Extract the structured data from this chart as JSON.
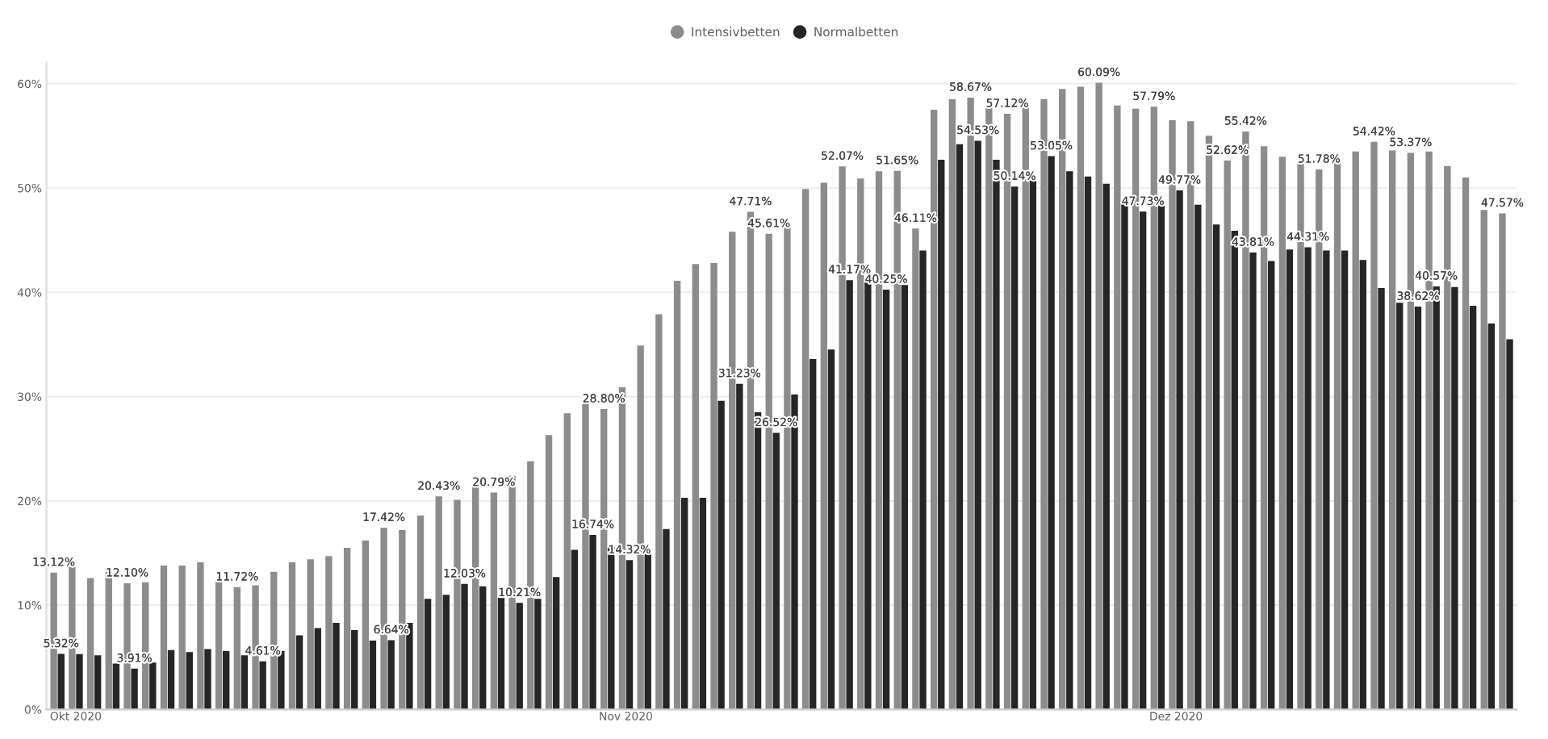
{
  "chart_data": {
    "type": "bar",
    "categories": [
      null,
      "Okt 2020",
      null,
      null,
      null,
      null,
      null,
      null,
      null,
      null,
      null,
      null,
      null,
      null,
      null,
      null,
      null,
      null,
      null,
      null,
      null,
      null,
      null,
      null,
      null,
      null,
      null,
      null,
      null,
      null,
      null,
      "Nov 2020",
      null,
      null,
      null,
      null,
      null,
      null,
      null,
      null,
      null,
      null,
      null,
      null,
      null,
      null,
      null,
      null,
      null,
      null,
      null,
      null,
      null,
      null,
      null,
      null,
      null,
      null,
      null,
      null,
      null,
      "Dez 2020",
      null,
      null,
      null,
      null,
      null,
      null,
      null,
      null,
      null,
      null,
      null,
      null,
      null,
      null,
      null,
      null,
      null,
      null
    ],
    "series": [
      {
        "name": "Intensivbetten",
        "color": "#8c8c8c",
        "values": [
          13.12,
          13.7,
          12.6,
          13.2,
          12.1,
          12.2,
          13.8,
          13.8,
          14.1,
          12.3,
          11.72,
          11.9,
          13.2,
          14.1,
          14.4,
          14.7,
          15.5,
          16.2,
          17.42,
          17.2,
          18.6,
          20.43,
          20.1,
          21.5,
          20.79,
          22.4,
          23.8,
          26.3,
          28.4,
          29.6,
          28.8,
          30.9,
          34.9,
          37.9,
          41.1,
          42.7,
          42.8,
          45.8,
          47.71,
          45.61,
          46.2,
          49.9,
          50.5,
          52.07,
          50.9,
          51.6,
          51.65,
          46.11,
          57.5,
          58.5,
          58.67,
          58.2,
          57.12,
          57.7,
          58.5,
          59.5,
          59.7,
          60.09,
          57.9,
          57.6,
          57.79,
          56.5,
          56.4,
          55.0,
          52.62,
          55.42,
          54.0,
          53.0,
          52.3,
          51.78,
          52.5,
          53.5,
          54.42,
          53.6,
          53.37,
          53.5,
          52.1,
          51.0,
          47.9,
          47.57
        ],
        "value_labels": [
          "13.12%",
          null,
          null,
          null,
          "12.10%",
          null,
          null,
          null,
          null,
          null,
          "11.72%",
          null,
          null,
          null,
          null,
          null,
          null,
          null,
          "17.42%",
          null,
          null,
          "20.43%",
          null,
          null,
          "20.79%",
          null,
          null,
          null,
          null,
          null,
          "28.80%",
          null,
          null,
          null,
          null,
          null,
          null,
          null,
          "47.71%",
          "45.61%",
          null,
          null,
          null,
          "52.07%",
          null,
          null,
          "51.65%",
          "46.11%",
          null,
          null,
          "58.67%",
          null,
          "57.12%",
          null,
          null,
          null,
          null,
          "60.09%",
          null,
          null,
          "57.79%",
          null,
          null,
          null,
          "52.62%",
          "55.42%",
          null,
          null,
          null,
          "51.78%",
          null,
          null,
          "54.42%",
          null,
          "53.37%",
          null,
          null,
          null,
          null,
          "47.57%"
        ]
      },
      {
        "name": "Normalbetten",
        "color": "#262626",
        "values": [
          5.32,
          5.3,
          5.2,
          4.4,
          3.91,
          4.5,
          5.7,
          5.5,
          5.8,
          5.6,
          5.2,
          4.61,
          5.6,
          7.1,
          7.8,
          8.3,
          7.6,
          6.6,
          6.64,
          8.3,
          10.6,
          11.0,
          12.03,
          11.8,
          10.7,
          10.21,
          10.6,
          12.7,
          15.3,
          16.74,
          15.6,
          14.32,
          14.9,
          17.3,
          20.3,
          20.3,
          29.6,
          31.23,
          28.5,
          26.52,
          30.2,
          33.6,
          34.5,
          41.17,
          41.2,
          40.25,
          40.7,
          44.0,
          52.7,
          54.2,
          54.53,
          52.7,
          50.14,
          51.2,
          53.05,
          51.6,
          51.1,
          50.4,
          48.6,
          47.73,
          48.7,
          49.77,
          48.4,
          46.5,
          45.9,
          43.81,
          43.0,
          44.1,
          44.31,
          44.0,
          44.0,
          43.1,
          40.4,
          39.0,
          38.62,
          40.57,
          40.5,
          38.7,
          37.0,
          35.5
        ],
        "value_labels": [
          "5.32%",
          null,
          null,
          null,
          "3.91%",
          null,
          null,
          null,
          null,
          null,
          null,
          "4.61%",
          null,
          null,
          null,
          null,
          null,
          null,
          "6.64%",
          null,
          null,
          null,
          "12.03%",
          null,
          null,
          "10.21%",
          null,
          null,
          null,
          "16.74%",
          null,
          "14.32%",
          null,
          null,
          null,
          null,
          null,
          "31.23%",
          null,
          "26.52%",
          null,
          null,
          null,
          "41.17%",
          null,
          "40.25%",
          null,
          null,
          null,
          null,
          "54.53%",
          null,
          "50.14%",
          null,
          "53.05%",
          null,
          null,
          null,
          null,
          "47.73%",
          null,
          "49.77%",
          null,
          null,
          null,
          "43.81%",
          null,
          null,
          "44.31%",
          null,
          null,
          null,
          null,
          null,
          "38.62%",
          "40.57%",
          null,
          null,
          null,
          null
        ]
      }
    ],
    "ylim": [
      0,
      62
    ],
    "yticks": [
      {
        "value": 0,
        "label": "0%"
      },
      {
        "value": 10,
        "label": "10%"
      },
      {
        "value": 20,
        "label": "20%"
      },
      {
        "value": 30,
        "label": "30%"
      },
      {
        "value": 40,
        "label": "40%"
      },
      {
        "value": 50,
        "label": "50%"
      },
      {
        "value": 60,
        "label": "60%"
      }
    ],
    "grid": "y",
    "legend": "top",
    "marker": "circle"
  }
}
